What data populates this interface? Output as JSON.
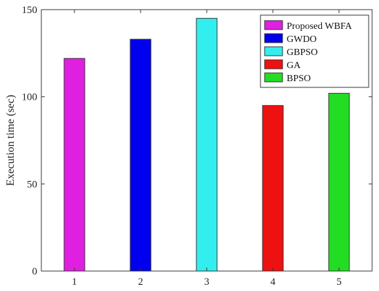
{
  "chart_data": {
    "type": "bar",
    "categories": [
      "1",
      "2",
      "3",
      "4",
      "5"
    ],
    "values": [
      122,
      133,
      145,
      95,
      102
    ],
    "series_names": [
      "Proposed WBFA",
      "GWDO",
      "GBPSO",
      "GA",
      "BPSO"
    ],
    "colors": [
      "#e020e0",
      "#0000ee",
      "#33eeee",
      "#ee1111",
      "#22dd22"
    ],
    "title": "",
    "xlabel": "",
    "ylabel": "Execution time (sec)",
    "ylim": [
      0,
      150
    ],
    "yticks": [
      0,
      50,
      100,
      150
    ],
    "grid": false,
    "legend_position": "top-right"
  }
}
